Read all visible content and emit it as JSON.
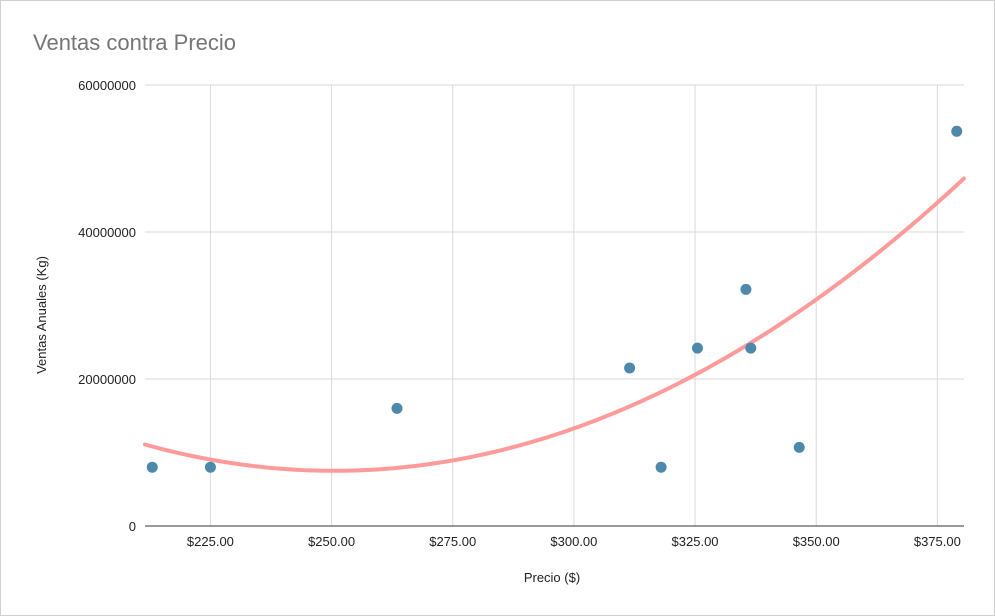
{
  "chart_data": {
    "type": "scatter",
    "title": "Ventas contra Precio",
    "xlabel": "Precio ($)",
    "ylabel": "Ventas Anuales (Kg)",
    "xlim": [
      211.5,
      380.5
    ],
    "ylim": [
      0,
      60000000
    ],
    "x_ticks": [
      225,
      250,
      275,
      300,
      325,
      350,
      375
    ],
    "x_tick_labels": [
      "$225.00",
      "$250.00",
      "$275.00",
      "$300.00",
      "$325.00",
      "$350.00",
      "$375.00"
    ],
    "y_ticks": [
      0,
      20000000,
      40000000,
      60000000
    ],
    "y_tick_labels": [
      "0",
      "20000000",
      "40000000",
      "60000000"
    ],
    "grid": true,
    "points": [
      {
        "x": 213,
        "y": 8000000
      },
      {
        "x": 225,
        "y": 8000000
      },
      {
        "x": 263.5,
        "y": 16000000
      },
      {
        "x": 311.5,
        "y": 21500000
      },
      {
        "x": 318,
        "y": 8000000
      },
      {
        "x": 325.5,
        "y": 24200000
      },
      {
        "x": 335.5,
        "y": 32200000
      },
      {
        "x": 336.5,
        "y": 24200000
      },
      {
        "x": 346.5,
        "y": 10700000
      },
      {
        "x": 379,
        "y": 53700000
      }
    ],
    "trendline": {
      "type": "polynomial",
      "degree": 2,
      "color": "#ff9a9a",
      "samples": [
        {
          "x": 211.5,
          "y": 11200000
        },
        {
          "x": 225,
          "y": 8900000
        },
        {
          "x": 250,
          "y": 7500000
        },
        {
          "x": 275,
          "y": 9000000
        },
        {
          "x": 300,
          "y": 13200000
        },
        {
          "x": 325,
          "y": 20500000
        },
        {
          "x": 350,
          "y": 31000000
        },
        {
          "x": 380.5,
          "y": 47200000
        }
      ]
    },
    "colors": {
      "point": "#4e88ab",
      "grid": "#d9d9d9",
      "axis": "#333333"
    }
  }
}
